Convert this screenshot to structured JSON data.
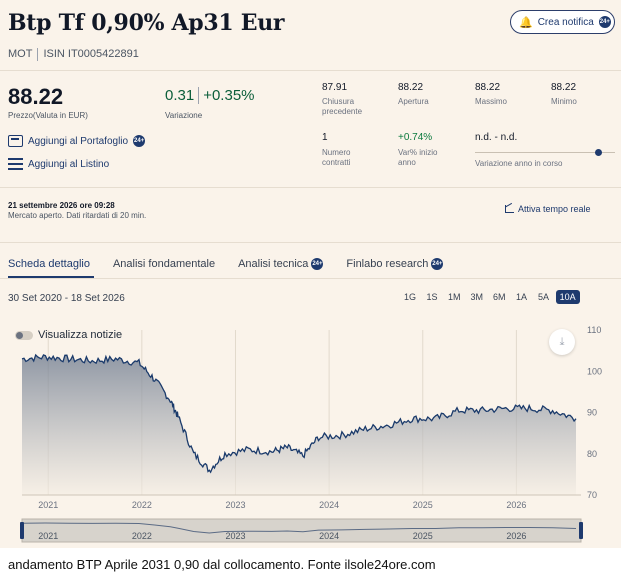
{
  "header": {
    "title": "Btp Tf 0,90% Ap31 Eur",
    "market": "MOT",
    "isin": "ISIN IT0005422891",
    "notify_label": "Crea notifica",
    "pill_text": "24+"
  },
  "quote": {
    "price": "88.22",
    "price_label": "Prezzo(Valuta in EUR)",
    "change": "0.31",
    "change_pct": "+0.35%",
    "change_label": "Variazione"
  },
  "stats": [
    {
      "value": "87.91",
      "label": "Chiusura precedente"
    },
    {
      "value": "88.22",
      "label": "Apertura"
    },
    {
      "value": "88.22",
      "label": "Massimo"
    },
    {
      "value": "88.22",
      "label": "Minimo"
    },
    {
      "value": "1",
      "label": "Numero contratti"
    },
    {
      "value": "+0.74%",
      "label": "Var% inizio anno"
    },
    {
      "value": "n.d. - n.d.",
      "label": "Variazione anno in corso"
    }
  ],
  "actions": {
    "portfolio": "Aggiungi al Portafoglio",
    "watchlist": "Aggiungi al Listino"
  },
  "status": {
    "datetime": "21 settembre 2026 ore 09:28",
    "note": "Mercato aperto. Dati ritardati di 20 min.",
    "realtime_label": "Attiva tempo reale"
  },
  "tabs": [
    {
      "label": "Scheda dettaglio"
    },
    {
      "label": "Analisi fondamentale"
    },
    {
      "label": "Analisi tecnica"
    },
    {
      "label": "Finlabo research"
    }
  ],
  "period_label": "30 Set 2020 - 18 Set 2026",
  "range_buttons": [
    "1G",
    "1S",
    "1M",
    "3M",
    "6M",
    "1A",
    "5A",
    "10A"
  ],
  "active_range": "10A",
  "toggle_label": "Visualizza notizie",
  "colors": {
    "accent": "#1e3a6e",
    "line": "#1a3a6b",
    "panel_bg": "#faf3ea"
  },
  "chart_data": {
    "type": "area",
    "x": [
      "2020-10",
      "2021-01",
      "2021-04",
      "2021-07",
      "2021-10",
      "2022-01",
      "2022-03",
      "2022-05",
      "2022-06",
      "2022-08",
      "2022-10",
      "2022-12",
      "2023-03",
      "2023-06",
      "2023-08",
      "2023-10",
      "2023-12",
      "2024-03",
      "2024-06",
      "2024-09",
      "2024-12",
      "2025-03",
      "2025-06",
      "2025-09",
      "2025-12",
      "2026-03",
      "2026-06",
      "2026-09"
    ],
    "values": [
      103,
      103.5,
      103,
      102.5,
      103,
      102,
      98,
      93,
      89,
      80,
      76,
      80,
      81,
      80.5,
      81.5,
      79.5,
      84,
      84.5,
      86,
      87,
      88.5,
      88.5,
      90.5,
      90.5,
      91,
      91,
      90.5,
      88.5
    ],
    "ylim": [
      70,
      110
    ],
    "yticks": [
      70,
      80,
      90,
      100,
      110
    ],
    "xticks": [
      "2021",
      "2022",
      "2023",
      "2024",
      "2025",
      "2026"
    ],
    "grid": true,
    "y_axis_side": "right"
  },
  "caption": "andamento BTP Aprile 2031 0,90 dal collocamento. Fonte ilsole24ore.com"
}
